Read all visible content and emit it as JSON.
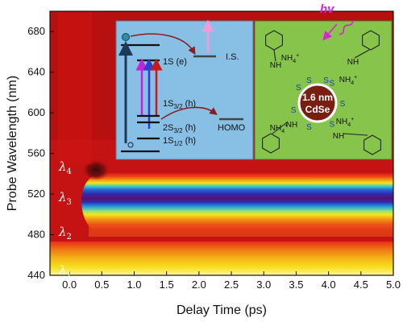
{
  "chart_data": {
    "type": "heatmap",
    "xlabel": "Delay Time (ps)",
    "ylabel": "Probe Wavelength (nm)",
    "xlim": [
      -0.3,
      5.0
    ],
    "ylim": [
      440,
      700
    ],
    "x_ticks": [
      "0.0",
      "0.5",
      "1.0",
      "1.5",
      "2.0",
      "2.5",
      "3.0",
      "3.5",
      "4.0",
      "4.5",
      "5.0"
    ],
    "y_ticks": [
      "440",
      "480",
      "520",
      "560",
      "600",
      "640",
      "680"
    ],
    "colormap": [
      "#ffffff",
      "#fdf59a",
      "#f7e51c",
      "#f5a816",
      "#ee5a18",
      "#d81818",
      "#b80f0f",
      "#2bd1d8",
      "#2a2fb6",
      "#3a0a3e"
    ],
    "features": [
      {
        "label": "λ1",
        "wavelength_nm": 445
      },
      {
        "label": "λ2",
        "wavelength_nm": 483
      },
      {
        "label": "λ3",
        "wavelength_nm": 517
      },
      {
        "label": "λ4",
        "wavelength_nm": 547
      }
    ]
  },
  "lambda_labels": [
    {
      "base": "λ",
      "sub": "1",
      "wavelength_nm": 445
    },
    {
      "base": "λ",
      "sub": "2",
      "wavelength_nm": 483
    },
    {
      "base": "λ",
      "sub": "3",
      "wavelength_nm": 517
    },
    {
      "base": "λ",
      "sub": "4",
      "wavelength_nm": 547
    }
  ],
  "inset_energy": {
    "levels": {
      "e1s": "1S (e)",
      "is": "I.S.",
      "h1s32": [
        "1S",
        "3/2",
        " (h)"
      ],
      "h2s32": [
        "2S",
        "3/2",
        " (h)"
      ],
      "h1s12": [
        "1S",
        "1/2",
        " (h)"
      ],
      "homo": "HOMO"
    },
    "colors": {
      "background": "#87bfe5",
      "arrow_dark": "#1e3a5a",
      "arrow_magenta": "#c224d6",
      "arrow_blue": "#2b3fd0",
      "arrow_red": "#c91a1a",
      "curve": "#8a1e1e",
      "pink": "#f29bd9"
    }
  },
  "inset_structure": {
    "background": "#86c44b",
    "core_color": "#7a1e12",
    "core_line1": "1.6 nm",
    "core_line2": "CdSe",
    "sulfur": "S",
    "ammonium": "NH",
    "ammonium_sub": "4",
    "ammonium_sup": "+",
    "amine": "NH",
    "photon": "hv"
  }
}
